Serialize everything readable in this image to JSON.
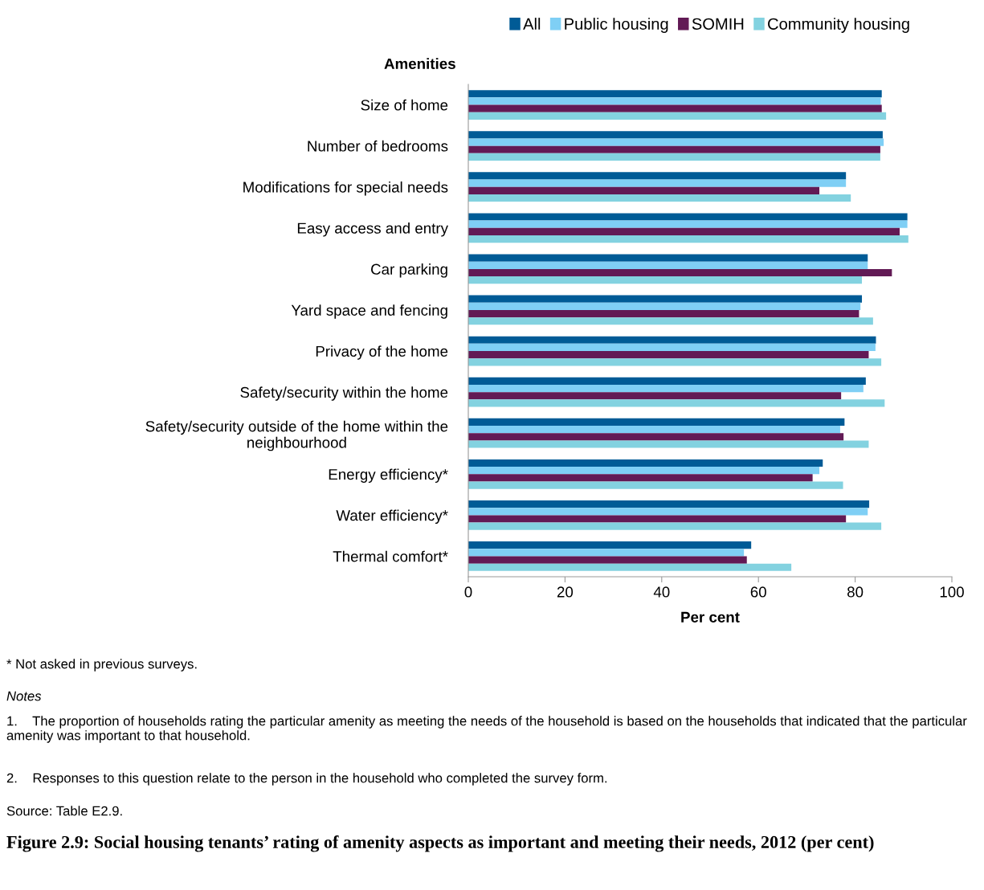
{
  "chart_data": {
    "type": "bar",
    "orientation": "horizontal",
    "title": "Figure 2.9: Social housing tenants’ rating of amenity aspects as important and meeting their needs, 2012 (per cent)",
    "xlabel": "Per cent",
    "ylabel": "Amenities",
    "categories": [
      "Size of home",
      "Number of bedrooms",
      "Modifications for special needs",
      "Easy access and entry",
      "Car parking",
      "Yard space and fencing",
      "Privacy of the home",
      "Safety/security within the home",
      "Safety/security outside of the home within the\nneighbourhood",
      "Energy efficiency*",
      "Water efficiency*",
      "Thermal comfort*"
    ],
    "series": [
      {
        "name": "All",
        "color": "#005b96",
        "values": [
          85.5,
          85.7,
          78.1,
          90.8,
          82.6,
          81.4,
          84.3,
          82.2,
          77.8,
          73.3,
          82.9,
          58.5
        ]
      },
      {
        "name": "Public housing",
        "color": "#7fcff5",
        "values": [
          85.3,
          85.9,
          78.1,
          90.8,
          82.6,
          81.1,
          84.2,
          81.7,
          76.9,
          72.6,
          82.6,
          57.0
        ]
      },
      {
        "name": "SOMIH",
        "color": "#621a55",
        "values": [
          85.5,
          85.2,
          72.6,
          89.2,
          87.6,
          80.8,
          82.8,
          77.1,
          77.6,
          71.2,
          78.1,
          57.6
        ]
      },
      {
        "name": "Community housing",
        "color": "#83d2e0",
        "values": [
          86.4,
          85.2,
          79.1,
          91.0,
          81.4,
          83.7,
          85.4,
          86.1,
          82.8,
          77.5,
          85.4,
          66.8
        ]
      }
    ],
    "xlim": [
      0,
      100
    ],
    "xticks": [
      0,
      20,
      40,
      60,
      80,
      100
    ],
    "legend": "top",
    "grid": false,
    "annotations": [
      "* Not asked in previous surveys.",
      "Notes",
      "1.    The proportion of households rating the particular amenity as meeting the needs of the household is based on the households that indicated that the particular amenity was important to that household.",
      "2.    Responses to this question relate to the person in the household who completed the survey form.",
      "Source: Table E2.9."
    ]
  }
}
